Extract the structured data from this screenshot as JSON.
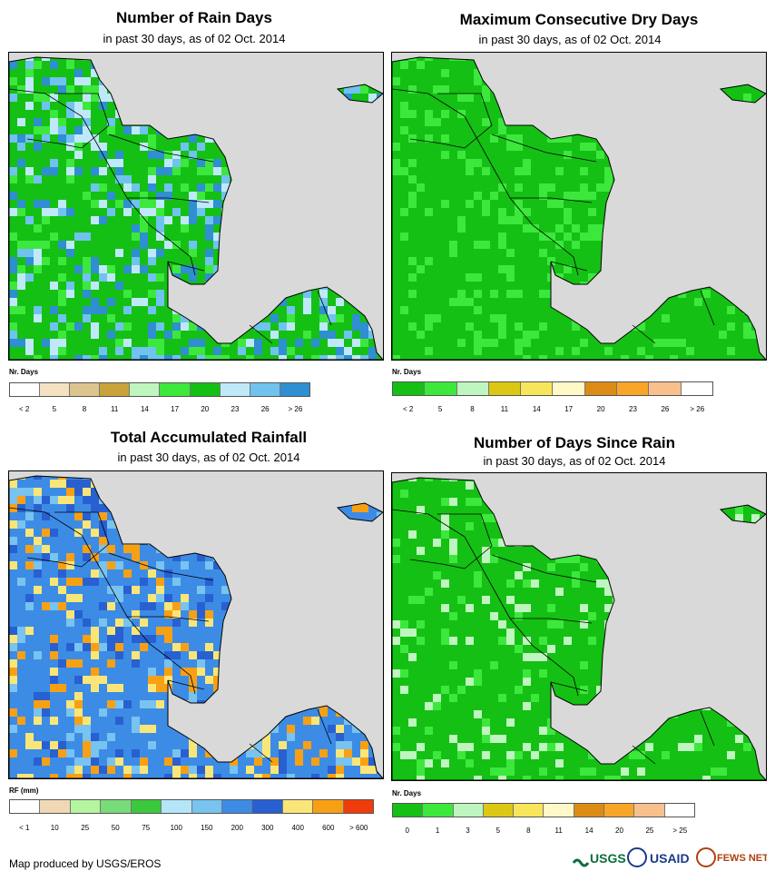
{
  "panels": [
    {
      "title": "Number of Rain Days",
      "subtitle": "in past 30 days, as of 02 Oct. 2014",
      "legend_title": "Nr. Days",
      "legend_labels": [
        "< 2",
        "5",
        "8",
        "11",
        "14",
        "17",
        "20",
        "23",
        "26",
        "> 26"
      ],
      "legend_colors": [
        "#ffffff",
        "#f4e1c1",
        "#dcc48e",
        "#c9a23a",
        "#bff5bf",
        "#3ce83c",
        "#14c014",
        "#bfe9f9",
        "#6fc3ee",
        "#2f8fd0"
      ],
      "palette": {
        "land": "#14c014",
        "alt1": "#3ce83c",
        "alt2": "#bfe9f9",
        "alt3": "#6fc3ee",
        "alt4": "#2f8fd0"
      }
    },
    {
      "title": "Maximum Consecutive Dry Days",
      "subtitle": "in past 30 days, as of 02 Oct. 2014",
      "legend_title": "Nr. Days",
      "legend_labels": [
        "< 2",
        "5",
        "8",
        "11",
        "14",
        "17",
        "20",
        "23",
        "26",
        "> 26"
      ],
      "legend_colors": [
        "#14c014",
        "#3ce83c",
        "#bff5bf",
        "#dcc814",
        "#f8e65a",
        "#fff9c8",
        "#dc8c14",
        "#f8a528",
        "#f8c08c",
        "#ffffff"
      ],
      "palette": {
        "land": "#14c014",
        "alt1": "#3ce83c",
        "alt2": "#14c014",
        "alt3": "#3ce83c",
        "alt4": "#14c014"
      }
    },
    {
      "title": "Total Accumulated Rainfall",
      "subtitle": "in past 30 days, as of 02 Oct. 2014",
      "legend_title": "RF (mm)",
      "legend_labels": [
        "< 1",
        "10",
        "25",
        "50",
        "75",
        "100",
        "150",
        "200",
        "300",
        "400",
        "600",
        "> 600"
      ],
      "legend_colors": [
        "#ffffff",
        "#f0d8b4",
        "#b4f5a0",
        "#78dc78",
        "#3cc83c",
        "#b4e6fa",
        "#78c3f0",
        "#3c8ce6",
        "#2860d2",
        "#fae678",
        "#f8a014",
        "#f03c0a"
      ],
      "palette": {
        "land": "#3c8ce6",
        "alt1": "#2860d2",
        "alt2": "#f8a014",
        "alt3": "#fae678",
        "alt4": "#78c3f0"
      }
    },
    {
      "title": "Number of Days Since Rain",
      "subtitle": "in past 30 days, as of 02 Oct. 2014",
      "legend_title": "Nr. Days",
      "legend_labels": [
        "0",
        "1",
        "3",
        "5",
        "8",
        "11",
        "14",
        "20",
        "25",
        "> 25"
      ],
      "legend_colors": [
        "#14c014",
        "#3ce83c",
        "#bff5bf",
        "#dcc814",
        "#f8e65a",
        "#fff9c8",
        "#dc8c14",
        "#f8a528",
        "#f8c08c",
        "#ffffff"
      ],
      "palette": {
        "land": "#14c014",
        "alt1": "#14c014",
        "alt2": "#bff5bf",
        "alt3": "#3ce83c",
        "alt4": "#14c014"
      }
    }
  ],
  "credit": "Map produced by USGS/EROS",
  "logos": {
    "usgs": "USGS",
    "usaid": "USAID",
    "fews": "FEWS NET"
  }
}
